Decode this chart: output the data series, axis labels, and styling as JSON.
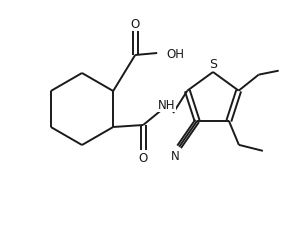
{
  "background_color": "#ffffff",
  "line_color": "#1a1a1a",
  "line_width": 1.4,
  "font_size": 8.5,
  "figsize": [
    2.84,
    2.32
  ],
  "dpi": 100,
  "xlim": [
    0,
    284
  ],
  "ylim": [
    0,
    232
  ]
}
